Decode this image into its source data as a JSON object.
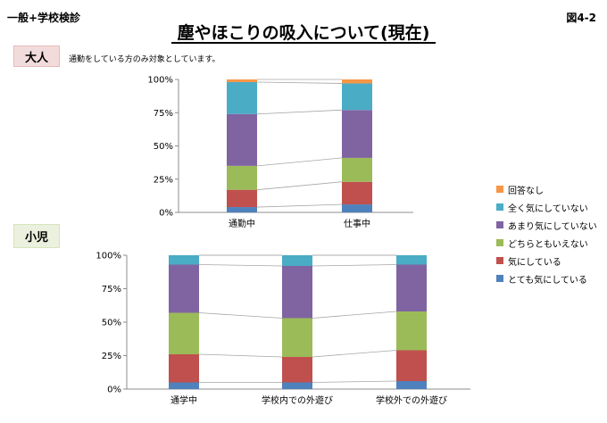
{
  "header": {
    "left_label": "一般+学校検診",
    "right_label": "図4-2"
  },
  "title": "塵やほこりの吸入について(現在)",
  "sections": {
    "adult": {
      "label": "大人",
      "note": "通勤をしている方のみ対象としています。"
    },
    "child": {
      "label": "小児"
    }
  },
  "colors": [
    "#4f81bd",
    "#c0504d",
    "#9bbb59",
    "#8064a2",
    "#4bacc6",
    "#f79646"
  ],
  "legend": [
    "回答なし",
    "全く気にしていない",
    "あまり気にしていない",
    "どちらともいえない",
    "気にしている",
    "とても気にしている"
  ],
  "chart_data": [
    {
      "type": "bar",
      "stacked": true,
      "percent": true,
      "categories": [
        "通勤中",
        "仕事中"
      ],
      "ylim": [
        0,
        100
      ],
      "yticks": [
        "0%",
        "25%",
        "50%",
        "75%",
        "100%"
      ],
      "series": [
        {
          "name": "とても気にしている",
          "values": [
            4,
            6
          ]
        },
        {
          "name": "気にしている",
          "values": [
            13,
            17
          ]
        },
        {
          "name": "どちらともいえない",
          "values": [
            18,
            18
          ]
        },
        {
          "name": "あまり気にしていない",
          "values": [
            39,
            36
          ]
        },
        {
          "name": "全く気にしていない",
          "values": [
            24,
            20
          ]
        },
        {
          "name": "回答なし",
          "values": [
            2,
            3
          ]
        }
      ]
    },
    {
      "type": "bar",
      "stacked": true,
      "percent": true,
      "categories": [
        "通学中",
        "学校内での外遊び",
        "学校外での外遊び"
      ],
      "ylim": [
        0,
        100
      ],
      "yticks": [
        "0%",
        "25%",
        "50%",
        "75%",
        "100%"
      ],
      "series": [
        {
          "name": "とても気にしている",
          "values": [
            5,
            5,
            6
          ]
        },
        {
          "name": "気にしている",
          "values": [
            21,
            19,
            23
          ]
        },
        {
          "name": "どちらともいえない",
          "values": [
            31,
            29,
            29
          ]
        },
        {
          "name": "あまり気にしていない",
          "values": [
            36,
            39,
            35
          ]
        },
        {
          "name": "全く気にしていない",
          "values": [
            7,
            8,
            7
          ]
        },
        {
          "name": "回答なし",
          "values": [
            0,
            0,
            0
          ]
        }
      ]
    }
  ]
}
